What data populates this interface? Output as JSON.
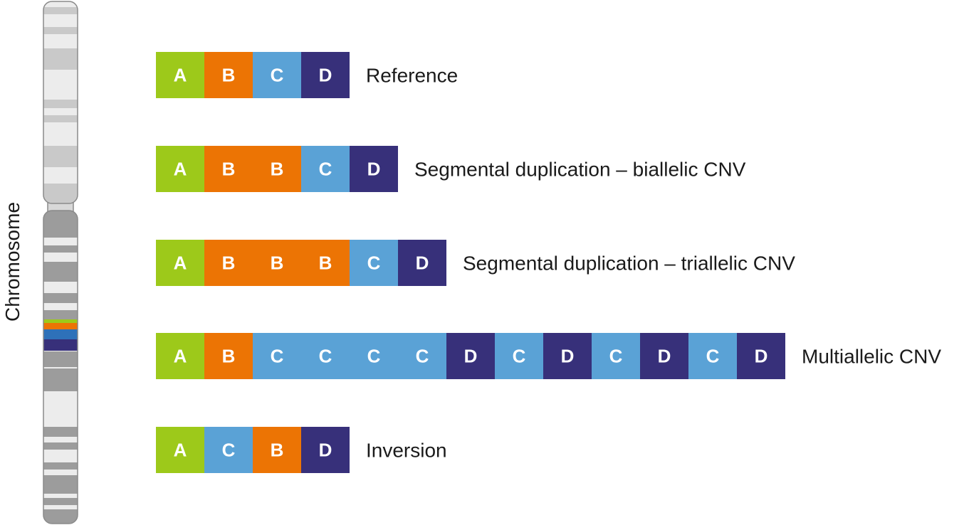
{
  "colors": {
    "A": "#9dc91a",
    "B": "#ec7404",
    "C": "#5aa2d6",
    "D": "#37307a",
    "chromosome_outline": "#8a8a8a",
    "text": "#1a1a1a"
  },
  "chromosome": {
    "label": "Chromosome",
    "highlight_colors": [
      "#9dc91a",
      "#ec7404",
      "#2e71b9",
      "#37307a"
    ]
  },
  "rows": [
    {
      "label": "Reference",
      "segments": [
        "A",
        "B",
        "C",
        "D"
      ]
    },
    {
      "label": "Segmental duplication – biallelic CNV",
      "segments": [
        "A",
        "B",
        "B",
        "C",
        "D"
      ]
    },
    {
      "label": "Segmental duplication – triallelic CNV",
      "segments": [
        "A",
        "B",
        "B",
        "B",
        "C",
        "D"
      ]
    },
    {
      "label": "Multiallelic CNV",
      "segments": [
        "A",
        "B",
        "C",
        "C",
        "C",
        "C",
        "D",
        "C",
        "D",
        "C",
        "D",
        "C",
        "D"
      ]
    },
    {
      "label": "Inversion",
      "segments": [
        "A",
        "C",
        "B",
        "D"
      ]
    }
  ]
}
